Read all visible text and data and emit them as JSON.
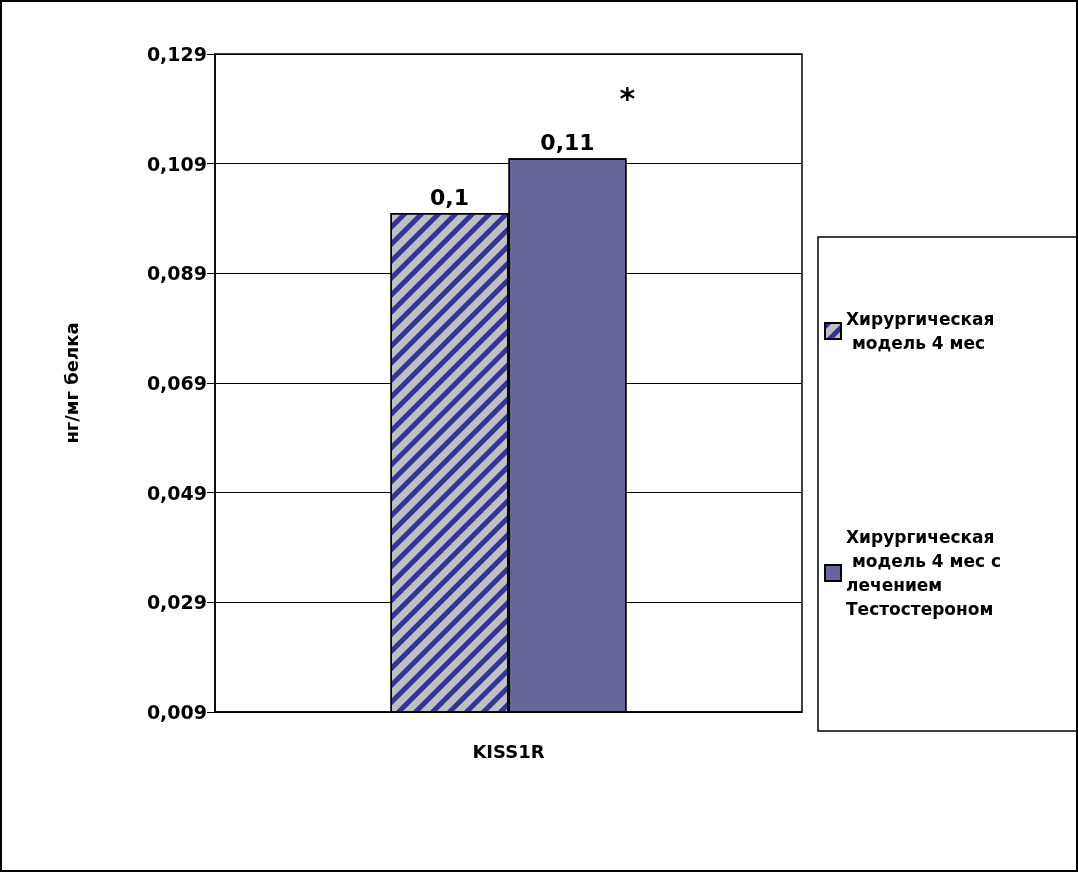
{
  "chart_data": {
    "type": "bar",
    "ylabel": "нг/мг белка",
    "categories": [
      "KISS1R"
    ],
    "series": [
      {
        "name": "Хирургическая модель 4 мес",
        "color": "#c0c0c0",
        "values": [
          0.1
        ],
        "value_labels": [
          "0,1"
        ]
      },
      {
        "name": "Хирургическая модель 4 мес с лечением Тестостероном",
        "color": "#666699",
        "values": [
          0.11
        ],
        "value_labels": [
          "0,11"
        ]
      }
    ],
    "ylim": [
      0.009,
      0.129
    ],
    "yticks": [
      {
        "value": 0.009,
        "label": "0,009"
      },
      {
        "value": 0.029,
        "label": "0,029"
      },
      {
        "value": 0.049,
        "label": "0,049"
      },
      {
        "value": 0.069,
        "label": "0,069"
      },
      {
        "value": 0.089,
        "label": "0,089"
      },
      {
        "value": 0.109,
        "label": "0,109"
      },
      {
        "value": 0.129,
        "label": "0,129"
      }
    ],
    "grid": "y",
    "legend": "right",
    "annotations": [
      "*"
    ]
  }
}
